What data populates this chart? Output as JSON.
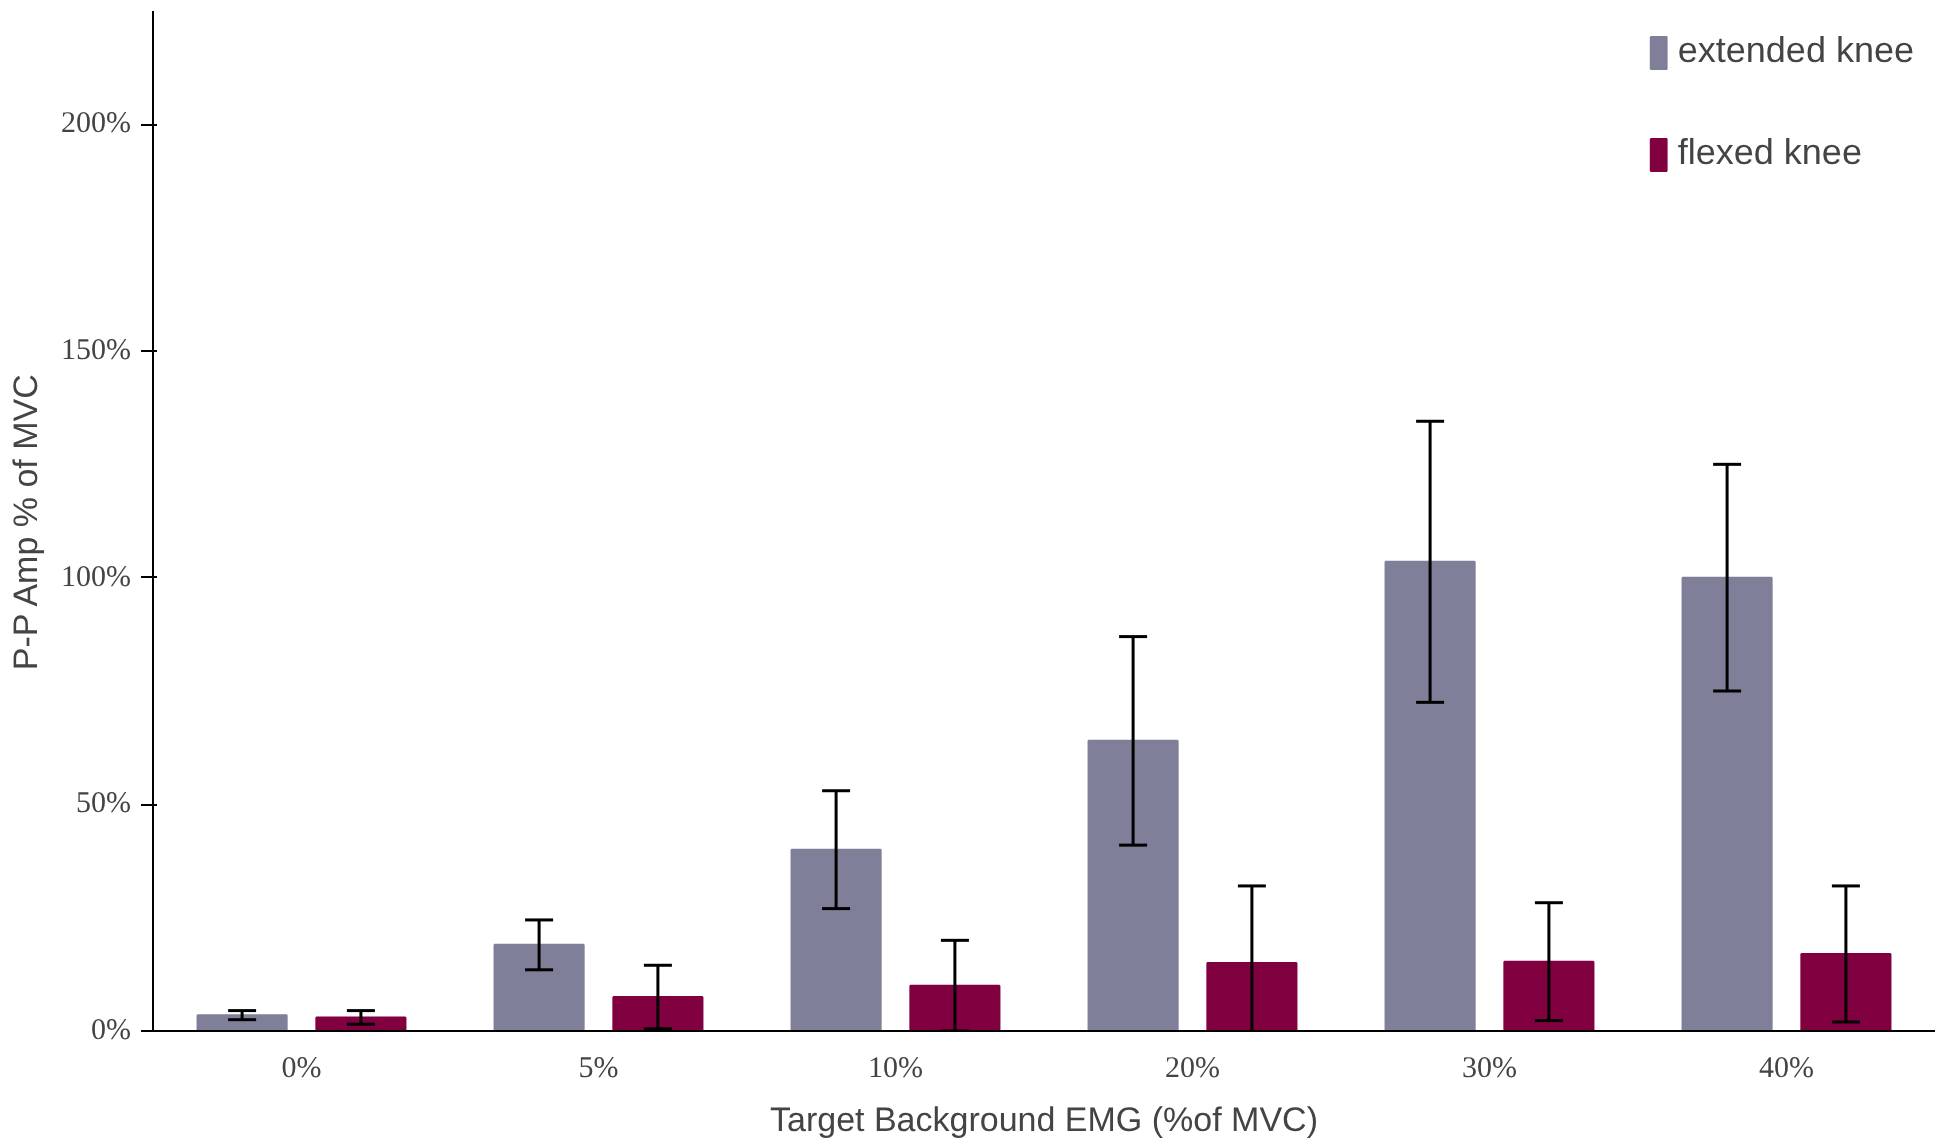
{
  "chart_data": {
    "type": "bar",
    "xlabel": "Target Background EMG (%of MVC)",
    "ylabel": "P-P Amp % of MVC",
    "categories": [
      "0%",
      "5%",
      "10%",
      "20%",
      "30%",
      "40%"
    ],
    "series": [
      {
        "name": "extended knee",
        "color": "#7f7f99",
        "values": [
          3.5,
          19,
          40,
          64,
          103.5,
          100
        ],
        "errors": [
          1,
          5.5,
          13,
          23,
          31,
          25
        ]
      },
      {
        "name": "flexed knee",
        "color": "#800040",
        "values": [
          3,
          7.5,
          10,
          15,
          15.3,
          17
        ],
        "errors": [
          1.5,
          7,
          10,
          17,
          13,
          15
        ]
      }
    ],
    "ylim": [
      0,
      225
    ],
    "yticks": [
      {
        "value": 0,
        "label": "0%"
      },
      {
        "value": 50,
        "label": "50%"
      },
      {
        "value": 100,
        "label": "100%"
      },
      {
        "value": 150,
        "label": "150%"
      },
      {
        "value": 200,
        "label": "200%"
      }
    ],
    "grid": false,
    "legend": "top right"
  }
}
